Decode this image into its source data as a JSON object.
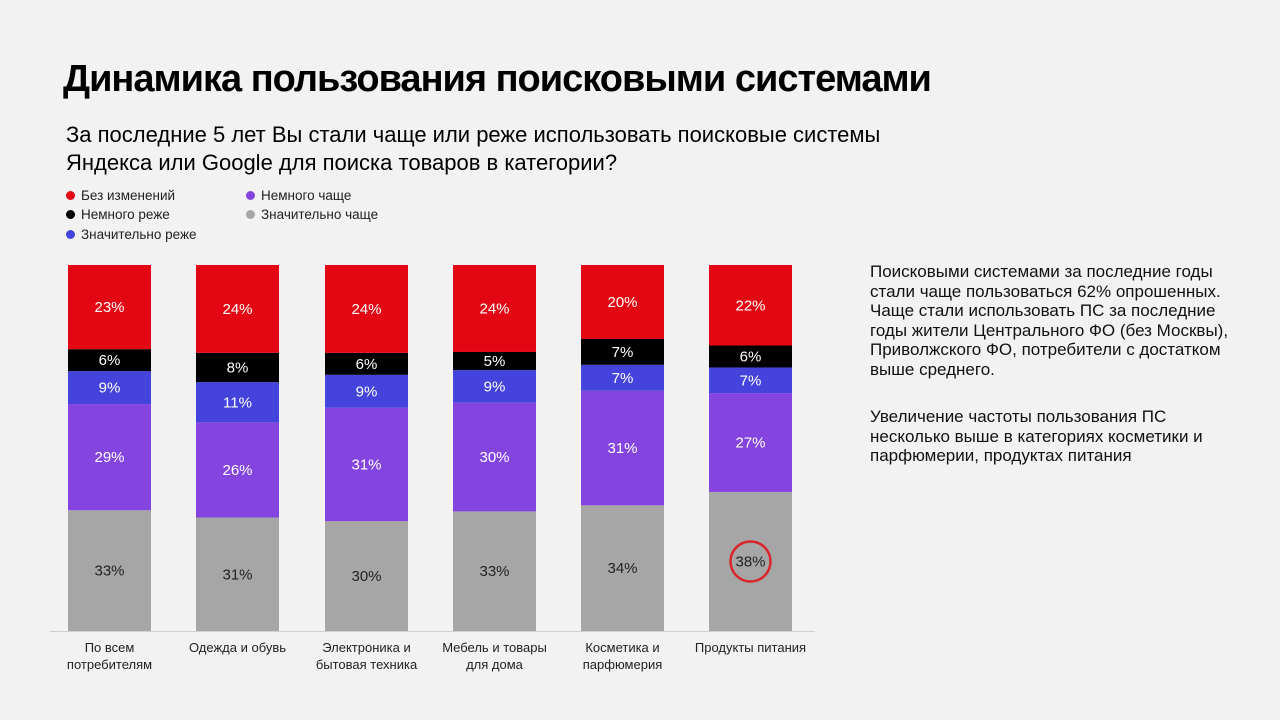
{
  "title": "Динамика пользования поисковыми системами",
  "subtitle": "За последние 5 лет Вы стали чаще или реже использовать поисковые системы Яндекса или Google для поиска товаров в категории?",
  "side_text": [
    "Поисковыми системами за последние годы стали чаще пользоваться 62% опрошенных. Чаще стали использовать ПС за последние годы жители Центрального ФО (без Москвы), Приволжского ФО, потребители с достатком выше среднего.",
    "Увеличение частоты пользования ПС несколько выше в категориях косметики и парфюмерии, продуктах питания"
  ],
  "chart_data": {
    "type": "bar",
    "stacked": true,
    "percent_stacked": true,
    "legend_position": "top-left",
    "grid": false,
    "categories": [
      "По всем потребителям",
      "Одежда и обувь",
      "Электроника и бытовая техника",
      "Мебель и товары для дома",
      "Косметика и парфюмерия",
      "Продукты питания"
    ],
    "series": [
      {
        "name": "Значительно чаще",
        "color": "#a6a6a6",
        "values": [
          33,
          31,
          30,
          33,
          34,
          38
        ]
      },
      {
        "name": "Немного чаще",
        "color": "#8444e0",
        "values": [
          29,
          26,
          31,
          30,
          31,
          27
        ]
      },
      {
        "name": "Значительно реже",
        "color": "#4444dd",
        "values": [
          9,
          11,
          9,
          9,
          7,
          7
        ]
      },
      {
        "name": "Немного реже",
        "color": "#000000",
        "values": [
          6,
          8,
          6,
          5,
          7,
          6
        ]
      },
      {
        "name": "Без изменений",
        "color": "#e30613",
        "values": [
          23,
          24,
          24,
          24,
          20,
          22
        ]
      }
    ],
    "legend_order": [
      "Без изменений",
      "Немного реже",
      "Значительно реже",
      "Немного чаще",
      "Значительно чаще"
    ],
    "value_suffix": "%",
    "highlight": {
      "category": "Продукты питания",
      "series": "Значительно чаще",
      "marker": "red-circle",
      "color": "#d9262c"
    }
  }
}
